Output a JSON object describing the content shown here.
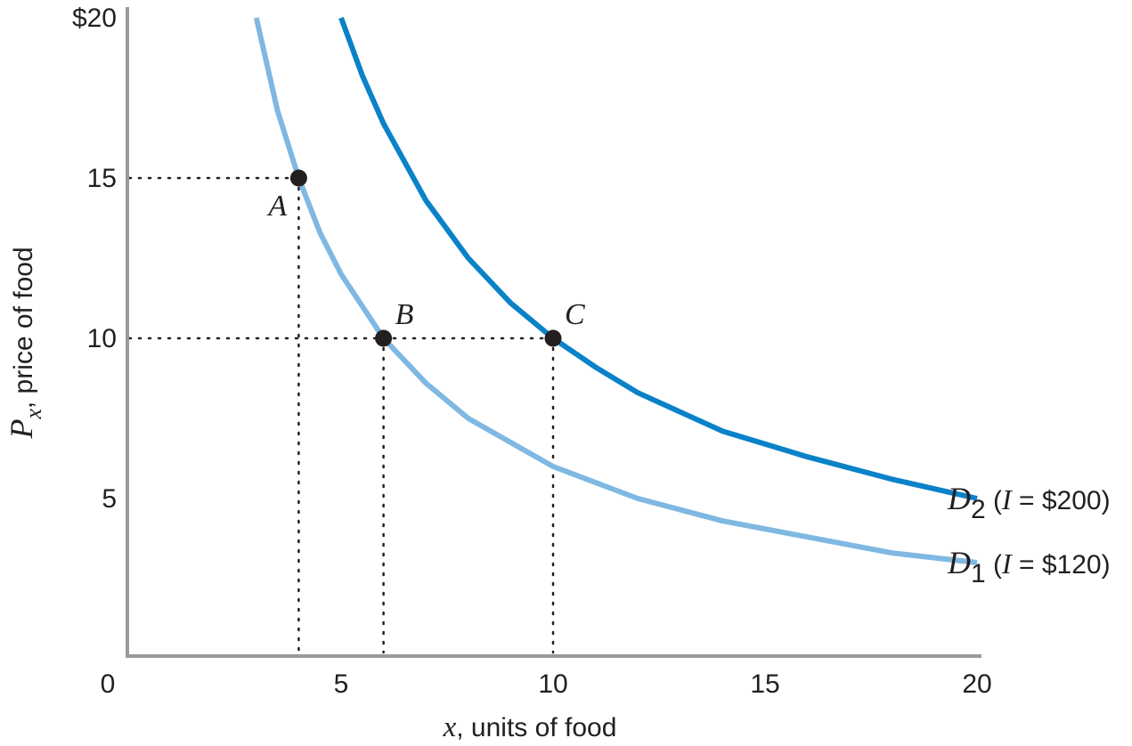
{
  "chart_data": {
    "type": "line",
    "xlabel": {
      "var": "x",
      "rest": ", units of food"
    },
    "ylabel": {
      "var": "P",
      "sub": "x",
      "rest": ", price of food"
    },
    "xlim": [
      0,
      20
    ],
    "ylim": [
      0,
      20
    ],
    "x_ticks": [
      {
        "value": 0,
        "label": "0"
      },
      {
        "value": 5,
        "label": "5"
      },
      {
        "value": 10,
        "label": "10"
      },
      {
        "value": 15,
        "label": "15"
      },
      {
        "value": 20,
        "label": "20"
      }
    ],
    "y_ticks": [
      {
        "value": 5,
        "label": "5"
      },
      {
        "value": 10,
        "label": "10"
      },
      {
        "value": 15,
        "label": "15"
      },
      {
        "value": 20,
        "label": "$20"
      }
    ],
    "series": [
      {
        "name": "D1",
        "label": {
          "letter": "D",
          "sub": "1",
          "open": " (",
          "var": "I",
          "rest": " = $120)"
        },
        "color": "#7fb8e2",
        "x": [
          3.0,
          3.5,
          4.0,
          4.5,
          5.0,
          6.0,
          7.0,
          8.0,
          10.0,
          12.0,
          14.0,
          16.0,
          18.0,
          20.0
        ],
        "y": [
          20.0,
          17.1,
          15.0,
          13.3,
          12.0,
          10.0,
          8.6,
          7.5,
          6.0,
          5.0,
          4.3,
          3.8,
          3.3,
          3.0
        ]
      },
      {
        "name": "D2",
        "label": {
          "letter": "D",
          "sub": "2",
          "open": " (",
          "var": "I",
          "rest": " = $200)"
        },
        "color": "#0a82c8",
        "x": [
          5.0,
          5.5,
          6.0,
          7.0,
          8.0,
          9.0,
          10.0,
          11.0,
          12.0,
          14.0,
          16.0,
          18.0,
          20.0
        ],
        "y": [
          20.0,
          18.2,
          16.7,
          14.3,
          12.5,
          11.1,
          10.0,
          9.1,
          8.3,
          7.1,
          6.3,
          5.6,
          5.0
        ]
      }
    ],
    "points": [
      {
        "label": "A",
        "x": 4,
        "y": 15,
        "label_pos": "below-left"
      },
      {
        "label": "B",
        "x": 6,
        "y": 10,
        "label_pos": "above-right"
      },
      {
        "label": "C",
        "x": 10,
        "y": 10,
        "label_pos": "above-right"
      }
    ],
    "guides": "dotted"
  }
}
